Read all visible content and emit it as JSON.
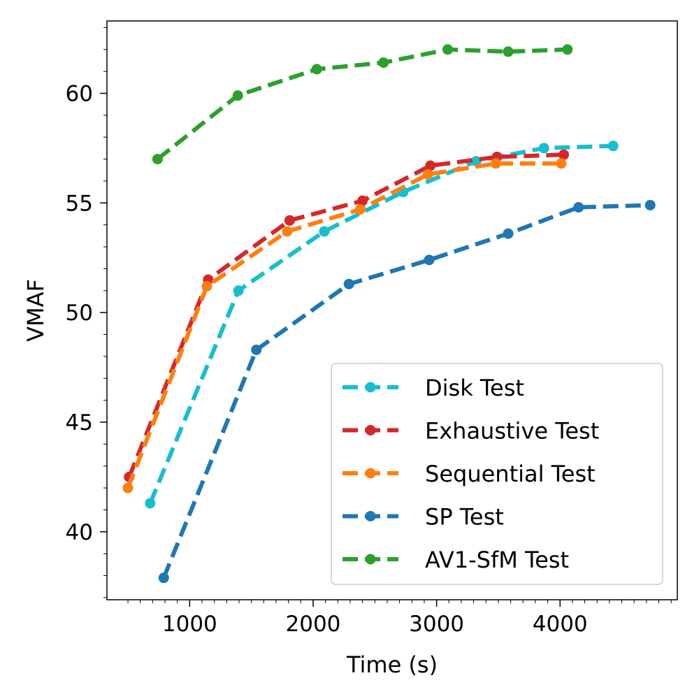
{
  "chart_data": {
    "type": "line",
    "xlabel": "Time (s)",
    "ylabel": "VMAF",
    "xlim": [
      330,
      4950
    ],
    "ylim": [
      36.9,
      63.3
    ],
    "x_ticks": [
      1000,
      2000,
      3000,
      4000
    ],
    "x_tick_labels": [
      "1000",
      "2000",
      "3000",
      "4000"
    ],
    "y_ticks": [
      40,
      45,
      50,
      55,
      60
    ],
    "y_tick_labels": [
      "40",
      "45",
      "50",
      "55",
      "60"
    ],
    "grid": false,
    "legend_position": "lower-right",
    "series": [
      {
        "name": "Disk Test",
        "color": "#17becf",
        "x": [
          680,
          1395,
          2090,
          2730,
          3320,
          3870,
          4430
        ],
        "y": [
          41.3,
          51.0,
          53.7,
          55.5,
          56.9,
          57.5,
          57.6
        ]
      },
      {
        "name": "Exhaustive Test",
        "color": "#d62728",
        "x": [
          510,
          1150,
          1810,
          2400,
          2950,
          3490,
          4030
        ],
        "y": [
          42.5,
          51.5,
          54.2,
          55.1,
          56.7,
          57.1,
          57.2
        ]
      },
      {
        "name": "Sequential Test",
        "color": "#ff7f0e",
        "x": [
          500,
          1140,
          1790,
          2380,
          2930,
          3480,
          4010
        ],
        "y": [
          42.0,
          51.2,
          53.7,
          54.7,
          56.3,
          56.8,
          56.8
        ]
      },
      {
        "name": "SP Test",
        "color": "#1f77b4",
        "x": [
          790,
          1540,
          2290,
          2940,
          3580,
          4150,
          4730
        ],
        "y": [
          37.9,
          48.3,
          51.3,
          52.4,
          53.6,
          54.8,
          54.9
        ]
      },
      {
        "name": "AV1-SfM Test",
        "color": "#2ca02c",
        "x": [
          740,
          1390,
          2030,
          2570,
          3090,
          3580,
          4060
        ],
        "y": [
          57.0,
          59.9,
          61.1,
          61.4,
          62.0,
          61.9,
          62.0
        ]
      }
    ]
  }
}
